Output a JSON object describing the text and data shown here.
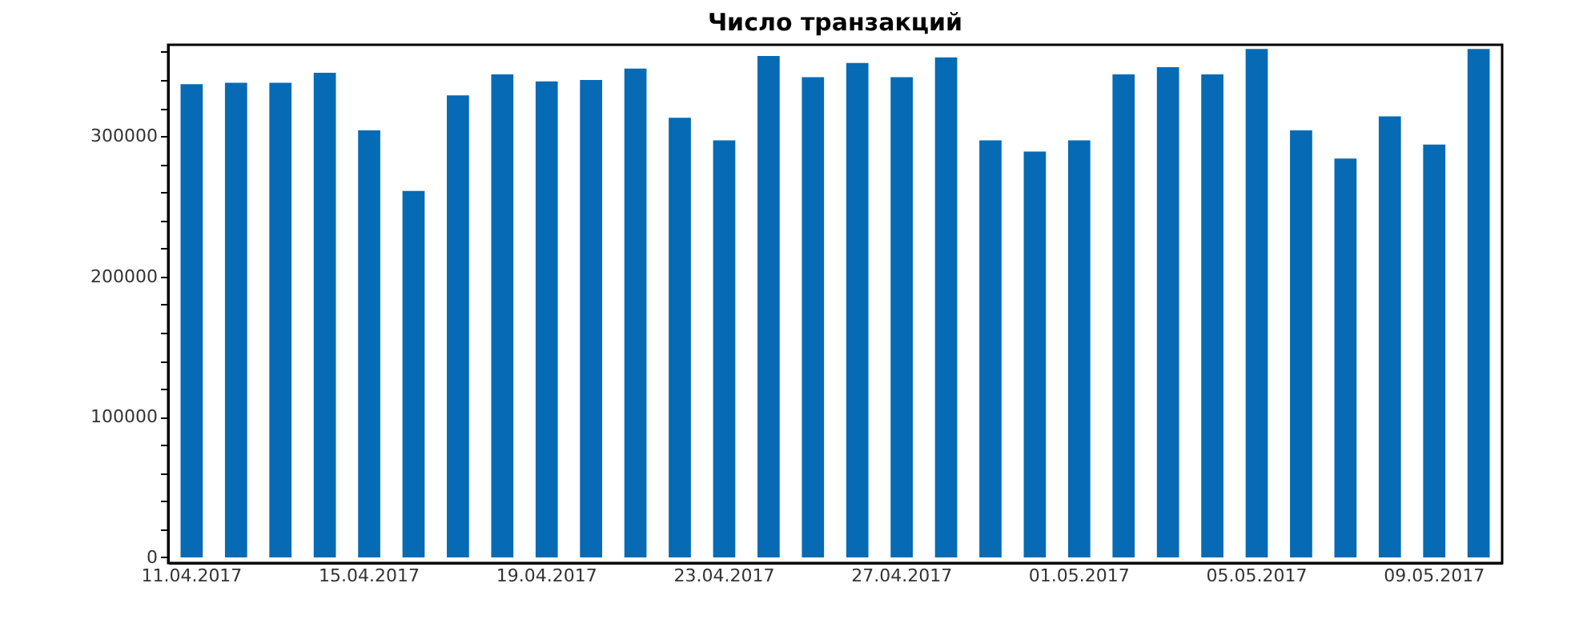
{
  "chart_data": {
    "type": "bar",
    "title": "Число транзакций",
    "categories": [
      "11.04.2017",
      null,
      null,
      null,
      "15.04.2017",
      null,
      null,
      null,
      "19.04.2017",
      null,
      null,
      null,
      "23.04.2017",
      null,
      null,
      null,
      "27.04.2017",
      null,
      null,
      null,
      "01.05.2017",
      null,
      null,
      null,
      "05.05.2017",
      null,
      null,
      null,
      "09.05.2017",
      null
    ],
    "values": [
      337000,
      338000,
      338000,
      345000,
      304000,
      261000,
      329000,
      344000,
      339000,
      340000,
      348000,
      313000,
      297000,
      357000,
      342000,
      352000,
      342000,
      356000,
      297000,
      289000,
      297000,
      344000,
      349000,
      344000,
      362000,
      304000,
      284000,
      314000,
      294000,
      362000
    ],
    "color": "#066bb4",
    "ylim": [
      -4000,
      365000
    ],
    "yticks": [
      0,
      {
        "value": 20000,
        "label": null
      },
      {
        "value": 40000,
        "label": null
      },
      {
        "value": 60000,
        "label": null
      },
      {
        "value": 80000,
        "label": null
      },
      100000,
      {
        "value": 120000,
        "label": null
      },
      {
        "value": 140000,
        "label": null
      },
      {
        "value": 160000,
        "label": null
      },
      {
        "value": 180000,
        "label": null
      },
      200000,
      {
        "value": 220000,
        "label": null
      },
      {
        "value": 240000,
        "label": null
      },
      {
        "value": 260000,
        "label": null
      },
      {
        "value": 280000,
        "label": null
      },
      300000,
      {
        "value": 320000,
        "label": null
      },
      {
        "value": 340000,
        "label": null
      },
      {
        "value": 360000,
        "label": null
      }
    ],
    "grid": false
  }
}
